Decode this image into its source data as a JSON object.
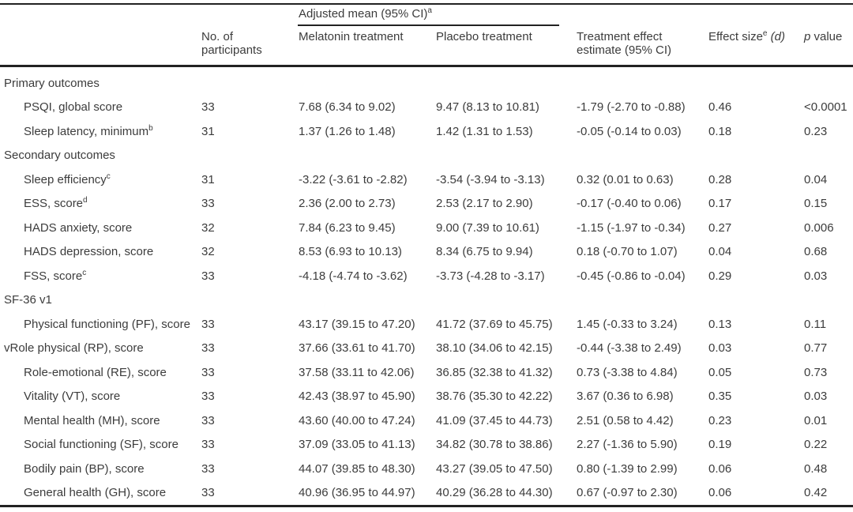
{
  "colors": {
    "background": "#ffffff",
    "text": "#3c3c3c",
    "rule": "#222222"
  },
  "table": {
    "header": {
      "spanner": {
        "label": "Adjusted mean (95% CI)",
        "sup": "a"
      },
      "col_n": "No. of participants",
      "col_melatonin": "Melatonin treatment",
      "col_placebo": "Placebo treatment",
      "col_effect": "Treatment effect estimate (95% CI)",
      "col_size": {
        "label": "Effect size",
        "sup": "e",
        "arg": "(d)"
      },
      "col_p": {
        "italic": "p",
        "rest": " value"
      }
    },
    "rows": [
      {
        "type": "section",
        "label": "Primary outcomes"
      },
      {
        "label": "PSQI, global score",
        "n": "33",
        "melatonin": "7.68 (6.34 to 9.02)",
        "placebo": "9.47 (8.13 to 10.81)",
        "effect": "-1.79 (-2.70 to -0.88)",
        "size": "0.46",
        "p": "<0.0001"
      },
      {
        "label": "Sleep latency, minimum",
        "sup": "b",
        "n": "31",
        "melatonin": "1.37 (1.26 to 1.48)",
        "placebo": "1.42 (1.31 to 1.53)",
        "effect": "-0.05 (-0.14 to 0.03)",
        "size": "0.18",
        "p": "0.23"
      },
      {
        "type": "section",
        "label": "Secondary outcomes"
      },
      {
        "label": "Sleep efficiency",
        "sup": "c",
        "n": "31",
        "melatonin": "-3.22 (-3.61 to -2.82)",
        "placebo": "-3.54 (-3.94 to -3.13)",
        "effect": "0.32 (0.01 to 0.63)",
        "size": "0.28",
        "p": "0.04"
      },
      {
        "label": "ESS, score",
        "sup": "d",
        "n": "33",
        "melatonin": "2.36 (2.00 to 2.73)",
        "placebo": "2.53 (2.17 to 2.90)",
        "effect": "-0.17 (-0.40 to 0.06)",
        "size": "0.17",
        "p": "0.15"
      },
      {
        "label": "HADS anxiety, score",
        "n": "32",
        "melatonin": "7.84 (6.23 to 9.45)",
        "placebo": "9.00 (7.39 to 10.61)",
        "effect": "-1.15 (-1.97 to -0.34)",
        "size": "0.27",
        "p": "0.006"
      },
      {
        "label": "HADS depression, score",
        "n": "32",
        "melatonin": "8.53 (6.93 to 10.13)",
        "placebo": "8.34 (6.75 to 9.94)",
        "effect": "0.18 (-0.70 to 1.07)",
        "size": "0.04",
        "p": "0.68"
      },
      {
        "label": "FSS, score",
        "sup": "c",
        "n": "33",
        "melatonin": "-4.18 (-4.74 to -3.62)",
        "placebo": "-3.73 (-4.28 to -3.17)",
        "effect": "-0.45 (-0.86 to -0.04)",
        "size": "0.29",
        "p": "0.03"
      },
      {
        "type": "section",
        "label": "SF-36 v1"
      },
      {
        "label": "Physical functioning (PF), score",
        "n": "33",
        "melatonin": "43.17 (39.15 to 47.20)",
        "placebo": "41.72 (37.69 to 45.75)",
        "effect": "1.45 (-0.33 to 3.24)",
        "size": "0.13",
        "p": "0.11"
      },
      {
        "label": "vRole physical (RP), score",
        "flush": true,
        "n": "33",
        "melatonin": "37.66 (33.61 to 41.70)",
        "placebo": "38.10 (34.06 to 42.15)",
        "effect": "-0.44 (-3.38 to 2.49)",
        "size": "0.03",
        "p": "0.77"
      },
      {
        "label": "Role-emotional (RE), score",
        "n": "33",
        "melatonin": "37.58 (33.11 to 42.06)",
        "placebo": "36.85 (32.38 to 41.32)",
        "effect": "0.73 (-3.38 to 4.84)",
        "size": "0.05",
        "p": "0.73"
      },
      {
        "label": "Vitality (VT), score",
        "n": "33",
        "melatonin": "42.43 (38.97 to 45.90)",
        "placebo": "38.76 (35.30 to 42.22)",
        "effect": "3.67 (0.36 to 6.98)",
        "size": "0.35",
        "p": "0.03"
      },
      {
        "label": "Mental health (MH), score",
        "n": "33",
        "melatonin": "43.60 (40.00 to 47.24)",
        "placebo": "41.09 (37.45 to 44.73)",
        "effect": "2.51 (0.58 to 4.42)",
        "size": "0.23",
        "p": "0.01"
      },
      {
        "label": "Social functioning (SF), score",
        "n": "33",
        "melatonin": "37.09 (33.05 to 41.13)",
        "placebo": "34.82 (30.78 to 38.86)",
        "effect": "2.27 (-1.36 to 5.90)",
        "size": "0.19",
        "p": "0.22"
      },
      {
        "label": "Bodily pain (BP), score",
        "n": "33",
        "melatonin": "44.07 (39.85 to 48.30)",
        "placebo": "43.27 (39.05 to 47.50)",
        "effect": "0.80 (-1.39 to 2.99)",
        "size": "0.06",
        "p": "0.48"
      },
      {
        "label": "General health (GH), score",
        "n": "33",
        "melatonin": "40.96 (36.95 to 44.97)",
        "placebo": "40.29 (36.28 to 44.30)",
        "effect": "0.67 (-0.97 to 2.30)",
        "size": "0.06",
        "p": "0.42"
      }
    ]
  }
}
